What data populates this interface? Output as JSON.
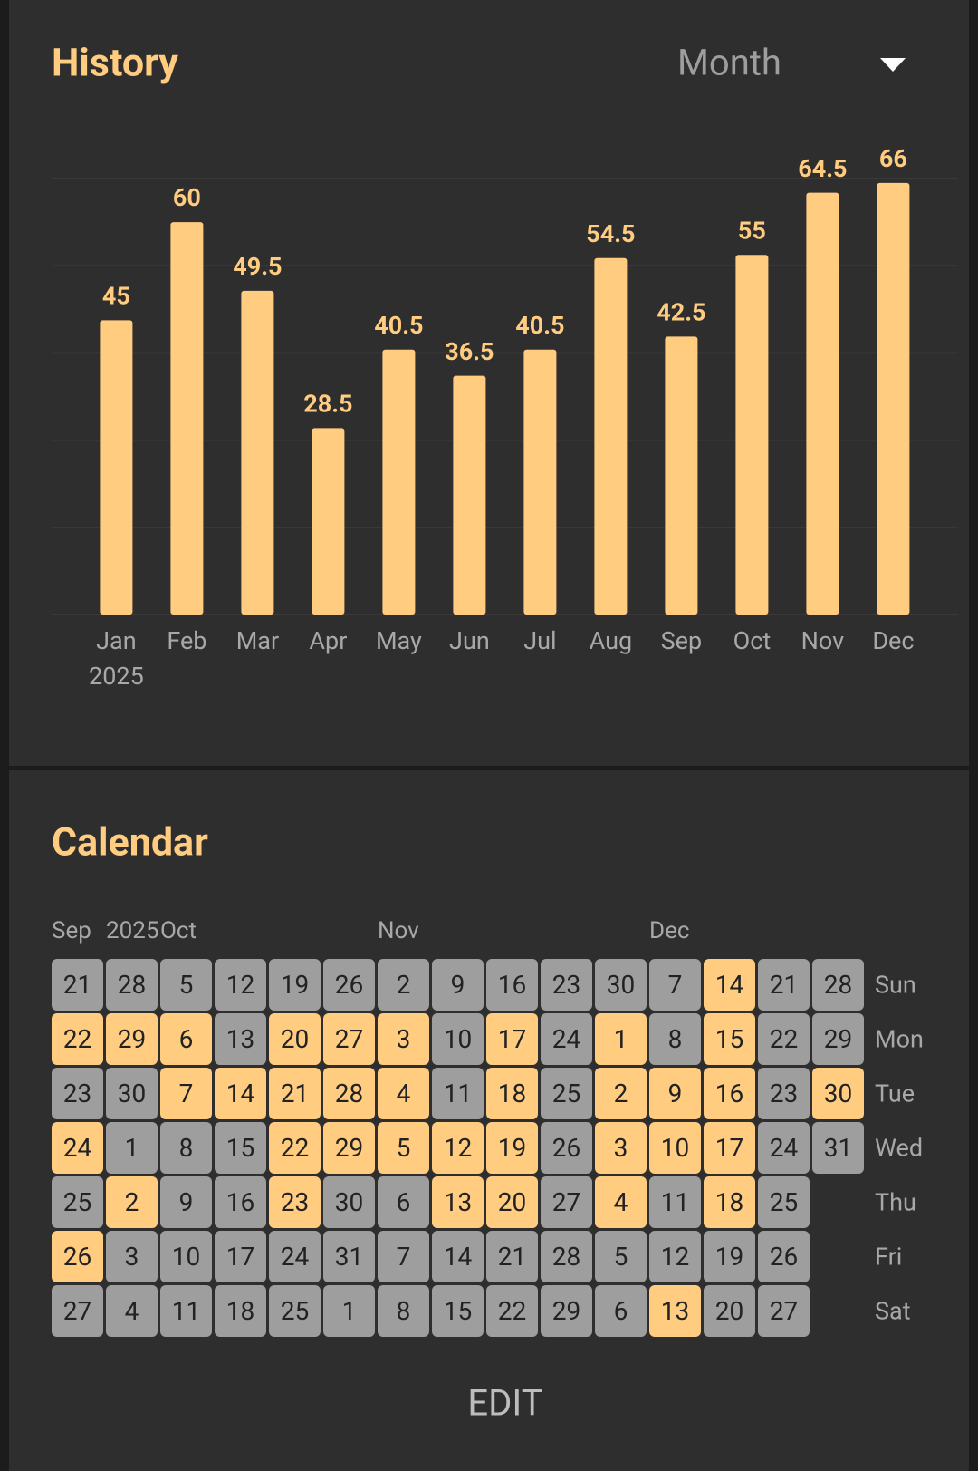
{
  "history": {
    "title": "History",
    "period": "Month"
  },
  "chart_data": {
    "type": "bar",
    "categories": [
      "Jan",
      "Feb",
      "Mar",
      "Apr",
      "May",
      "Jun",
      "Jul",
      "Aug",
      "Sep",
      "Oct",
      "Nov",
      "Dec"
    ],
    "x_sublabel": "2025",
    "values": [
      45,
      60,
      49.5,
      28.5,
      40.5,
      36.5,
      40.5,
      54.5,
      42.5,
      55,
      64.5,
      66
    ],
    "color": "#ffcc80",
    "ylim": [
      0,
      66.67
    ],
    "yticks": [
      0,
      13.33,
      26.67,
      40,
      53.33,
      66.67
    ],
    "grid": true
  },
  "calendar": {
    "title": "Calendar",
    "weekdays": [
      "Sun",
      "Mon",
      "Tue",
      "Wed",
      "Thu",
      "Fri",
      "Sat"
    ],
    "weeks": [
      {
        "label": "Sep",
        "days": [
          21,
          22,
          23,
          24,
          25,
          26,
          27
        ],
        "done": [
          false,
          true,
          false,
          true,
          false,
          true,
          false
        ]
      },
      {
        "label": "2025",
        "days": [
          28,
          29,
          30,
          1,
          2,
          3,
          4
        ],
        "done": [
          false,
          true,
          false,
          false,
          true,
          false,
          false
        ]
      },
      {
        "label": "Oct",
        "days": [
          5,
          6,
          7,
          8,
          9,
          10,
          11
        ],
        "done": [
          false,
          true,
          true,
          false,
          false,
          false,
          false
        ]
      },
      {
        "days": [
          12,
          13,
          14,
          15,
          16,
          17,
          18
        ],
        "done": [
          false,
          false,
          true,
          false,
          false,
          false,
          false
        ]
      },
      {
        "days": [
          19,
          20,
          21,
          22,
          23,
          24,
          25
        ],
        "done": [
          false,
          true,
          true,
          true,
          true,
          false,
          false
        ]
      },
      {
        "days": [
          26,
          27,
          28,
          29,
          30,
          31,
          1
        ],
        "done": [
          false,
          true,
          true,
          true,
          false,
          false,
          false
        ]
      },
      {
        "label": "Nov",
        "days": [
          2,
          3,
          4,
          5,
          6,
          7,
          8
        ],
        "done": [
          false,
          true,
          true,
          true,
          false,
          false,
          false
        ]
      },
      {
        "days": [
          9,
          10,
          11,
          12,
          13,
          14,
          15
        ],
        "done": [
          false,
          false,
          false,
          true,
          true,
          false,
          false
        ]
      },
      {
        "days": [
          16,
          17,
          18,
          19,
          20,
          21,
          22
        ],
        "done": [
          false,
          true,
          true,
          true,
          true,
          false,
          false
        ]
      },
      {
        "days": [
          23,
          24,
          25,
          26,
          27,
          28,
          29
        ],
        "done": [
          false,
          false,
          false,
          false,
          false,
          false,
          false
        ]
      },
      {
        "days": [
          30,
          1,
          2,
          3,
          4,
          5,
          6
        ],
        "done": [
          false,
          true,
          true,
          true,
          true,
          false,
          false
        ]
      },
      {
        "label": "Dec",
        "days": [
          7,
          8,
          9,
          10,
          11,
          12,
          13
        ],
        "done": [
          false,
          false,
          true,
          true,
          false,
          false,
          true
        ]
      },
      {
        "days": [
          14,
          15,
          16,
          17,
          18,
          19,
          20
        ],
        "done": [
          true,
          true,
          true,
          true,
          true,
          false,
          false
        ]
      },
      {
        "days": [
          21,
          22,
          23,
          24,
          25,
          26,
          27
        ],
        "done": [
          false,
          false,
          false,
          false,
          false,
          false,
          false
        ]
      },
      {
        "days": [
          28,
          29,
          30,
          31
        ],
        "done": [
          false,
          false,
          true,
          false
        ]
      }
    ],
    "action": "EDIT"
  }
}
